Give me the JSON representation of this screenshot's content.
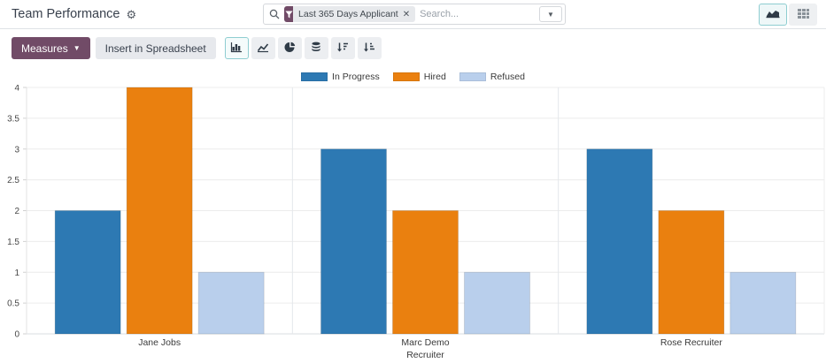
{
  "header": {
    "title": "Team Performance"
  },
  "search": {
    "facet_label": "Last 365 Days Applicant",
    "placeholder": "Search..."
  },
  "view_switcher": {
    "buttons": [
      "graph",
      "pivot"
    ],
    "active": "graph"
  },
  "toolbar": {
    "measures_label": "Measures",
    "insert_spreadsheet_label": "Insert in Spreadsheet",
    "chart_buttons": [
      "bar-chart",
      "line-chart",
      "pie-chart",
      "stacked",
      "sort-descending",
      "sort-ascending"
    ],
    "active_chart_button": "bar-chart"
  },
  "colors": {
    "accent_purple": "#714b67",
    "active_teal_border": "#8ecdd1"
  },
  "chart_data": {
    "type": "bar",
    "categories": [
      "Jane Jobs",
      "Marc Demo",
      "Rose Recruiter"
    ],
    "series": [
      {
        "name": "In Progress",
        "color": "#2d79b3",
        "values": [
          2,
          3,
          3
        ]
      },
      {
        "name": "Hired",
        "color": "#ea800f",
        "values": [
          4,
          2,
          2
        ]
      },
      {
        "name": "Refused",
        "color": "#b9cfec",
        "values": [
          1,
          1,
          1
        ]
      }
    ],
    "title": "",
    "xlabel": "Recruiter",
    "ylabel": "",
    "ylim": [
      0,
      4
    ],
    "ytick_step": 0.5,
    "grid": true,
    "legend_position": "top"
  }
}
